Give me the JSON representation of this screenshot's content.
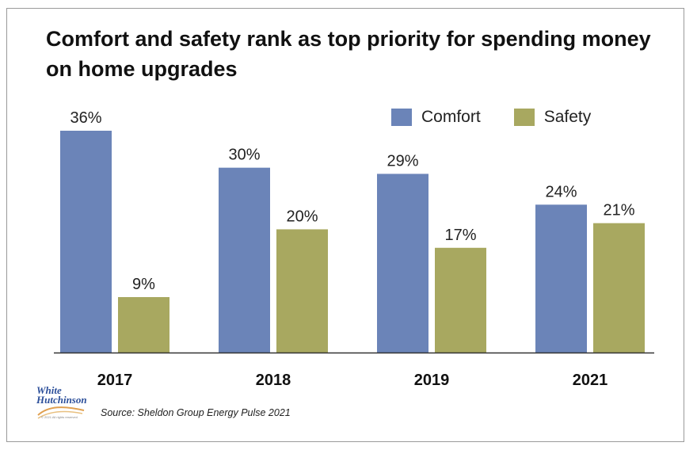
{
  "title": "Comfort and safety rank as top priority for spending money on home upgrades",
  "legend": {
    "comfort": "Comfort",
    "safety": "Safety"
  },
  "source": "Source: Sheldon Group Energy Pulse 2021",
  "logo": {
    "line1": "White",
    "line2": "Hutchinson",
    "fine_print": "© 2021 All rights reserved"
  },
  "colors": {
    "comfort": "#6b84b8",
    "safety": "#a8a860",
    "axis": "#333333"
  },
  "chart_data": {
    "type": "bar",
    "categories": [
      "2017",
      "2018",
      "2019",
      "2021"
    ],
    "series": [
      {
        "name": "Comfort",
        "values": [
          36,
          30,
          29,
          24
        ],
        "labels": [
          "36%",
          "30%",
          "29%",
          "24%"
        ]
      },
      {
        "name": "Safety",
        "values": [
          9,
          20,
          17,
          21
        ],
        "labels": [
          "9%",
          "20%",
          "17%",
          "21%"
        ]
      }
    ],
    "title": "Comfort and safety rank as top priority for spending money on home upgrades",
    "xlabel": "",
    "ylabel": "",
    "ylim": [
      0,
      36
    ],
    "grid": false,
    "legend_position": "top-right"
  }
}
